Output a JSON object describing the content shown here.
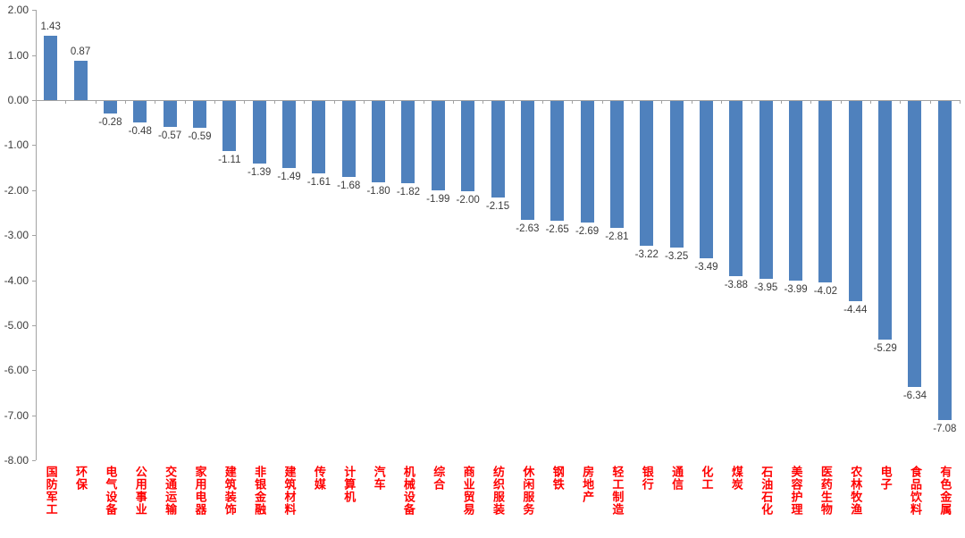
{
  "chart_data": {
    "type": "bar",
    "title": "",
    "xlabel": "",
    "ylabel": "",
    "categories": [
      "国防军工",
      "环保",
      "电气设备",
      "公用事业",
      "交通运输",
      "家用电器",
      "建筑装饰",
      "非银金融",
      "建筑材料",
      "传媒",
      "计算机",
      "汽车",
      "机械设备",
      "综合",
      "商业贸易",
      "纺织服装",
      "休闲服务",
      "钢铁",
      "房地产",
      "轻工制造",
      "银行",
      "通信",
      "化工",
      "煤炭",
      "石油石化",
      "美容护理",
      "医药生物",
      "农林牧渔",
      "电子",
      "食品饮料",
      "有色金属"
    ],
    "values": [
      1.43,
      0.87,
      -0.28,
      -0.48,
      -0.57,
      -0.59,
      -1.11,
      -1.39,
      -1.49,
      -1.61,
      -1.68,
      -1.8,
      -1.82,
      -1.99,
      -2.0,
      -2.15,
      -2.63,
      -2.65,
      -2.69,
      -2.81,
      -3.22,
      -3.25,
      -3.49,
      -3.88,
      -3.95,
      -3.99,
      -4.02,
      -4.44,
      -5.29,
      -6.34,
      -7.08
    ],
    "ylim": [
      -8,
      2
    ],
    "ytick_step": 1,
    "ytick_labels": [
      "2.00",
      "1.00",
      "0.00",
      "-1.00",
      "-2.00",
      "-3.00",
      "-4.00",
      "-5.00",
      "-6.00",
      "-7.00",
      "-8.00"
    ],
    "grid": false,
    "legend": null,
    "data_labels_visible": true,
    "colors": {
      "bar": "#4F81BD",
      "category_label": "#FF0000",
      "value_label": "#3b3b3b",
      "axis": "#a3a3a3"
    }
  }
}
